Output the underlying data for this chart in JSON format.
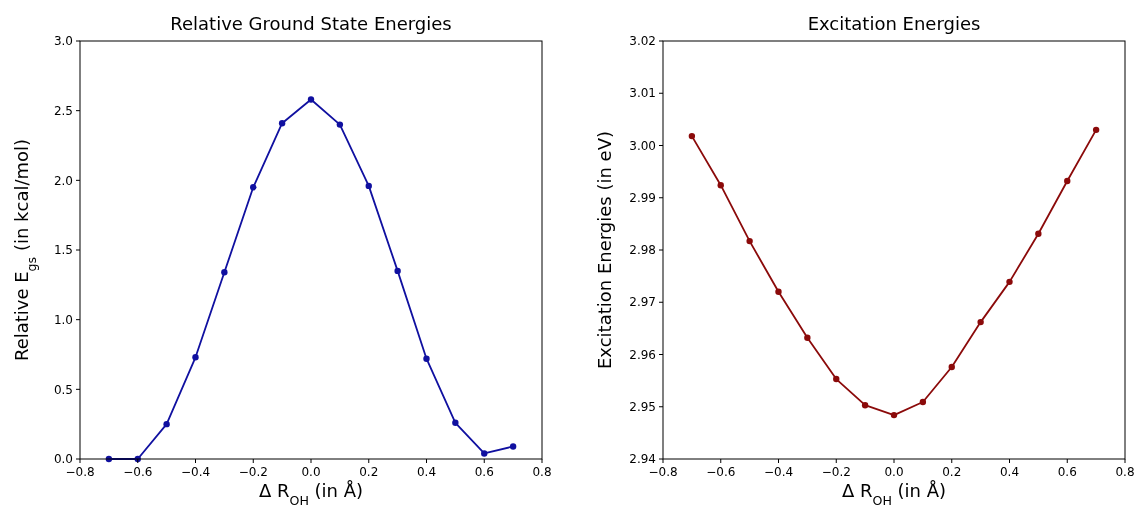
{
  "chart_data": [
    {
      "type": "line",
      "title": "Relative Ground State Energies",
      "xlabel": "Δ R$_{OH}$ (in Å)",
      "ylabel": "Relative E$_{gs}$ (in kcal/mol)",
      "marker": "circle",
      "line_style": "solid",
      "x": [
        -0.7,
        -0.6,
        -0.5,
        -0.4,
        -0.3,
        -0.2,
        -0.1,
        0,
        0.1,
        0.2,
        0.3,
        0.4,
        0.5,
        0.6,
        0.7
      ],
      "series": [
        {
          "color": "#1010a0",
          "values": [
            0.0,
            0.0,
            0.25,
            0.73,
            1.34,
            1.95,
            2.41,
            2.58,
            2.4,
            1.96,
            1.35,
            0.72,
            0.26,
            0.04,
            0.09
          ]
        }
      ],
      "xlim": [
        -0.8,
        0.8
      ],
      "xticks": [
        {
          "value": -0.8,
          "label": "−0.8"
        },
        {
          "value": -0.6,
          "label": "−0.6"
        },
        {
          "value": -0.4,
          "label": "−0.4"
        },
        {
          "value": -0.2,
          "label": "−0.2"
        },
        {
          "value": 0,
          "label": "0.0"
        },
        {
          "value": 0.2,
          "label": "0.2"
        },
        {
          "value": 0.4,
          "label": "0.4"
        },
        {
          "value": 0.6,
          "label": "0.6"
        },
        {
          "value": 0.8,
          "label": "0.8"
        }
      ],
      "ylim": [
        0,
        3
      ],
      "yticks": [
        {
          "value": 0,
          "label": "0.0"
        },
        {
          "value": 0.5,
          "label": "0.5"
        },
        {
          "value": 1,
          "label": "1.0"
        },
        {
          "value": 1.5,
          "label": "1.5"
        },
        {
          "value": 2,
          "label": "2.0"
        },
        {
          "value": 2.5,
          "label": "2.5"
        },
        {
          "value": 3,
          "label": "3.0"
        }
      ]
    },
    {
      "type": "line",
      "title": "Excitation Energies",
      "xlabel": "Δ R$_{OH}$ (in Å)",
      "ylabel": "Excitation Energies (in eV)",
      "marker": "circle",
      "line_style": "solid",
      "x": [
        -0.7,
        -0.6,
        -0.5,
        -0.4,
        -0.3,
        -0.2,
        -0.1,
        0,
        0.1,
        0.2,
        0.3,
        0.4,
        0.5,
        0.6,
        0.7
      ],
      "series": [
        {
          "color": "#8b0a0a",
          "values": [
            3.0018,
            2.9924,
            2.9817,
            2.972,
            2.9632,
            2.9553,
            2.9503,
            2.9484,
            2.9509,
            2.9576,
            2.9662,
            2.9739,
            2.9831,
            2.9932,
            3.003
          ]
        }
      ],
      "xlim": [
        -0.8,
        0.8
      ],
      "xticks": [
        {
          "value": -0.8,
          "label": "−0.8"
        },
        {
          "value": -0.6,
          "label": "−0.6"
        },
        {
          "value": -0.4,
          "label": "−0.4"
        },
        {
          "value": -0.2,
          "label": "−0.2"
        },
        {
          "value": 0,
          "label": "0.0"
        },
        {
          "value": 0.2,
          "label": "0.2"
        },
        {
          "value": 0.4,
          "label": "0.4"
        },
        {
          "value": 0.6,
          "label": "0.6"
        },
        {
          "value": 0.8,
          "label": "0.8"
        }
      ],
      "ylim": [
        2.94,
        3.02
      ],
      "yticks": [
        2.94,
        2.95,
        2.96,
        2.97,
        2.98,
        2.99,
        {
          "value": 3.0,
          "label": "3.00"
        },
        3.01,
        3.02
      ]
    }
  ]
}
